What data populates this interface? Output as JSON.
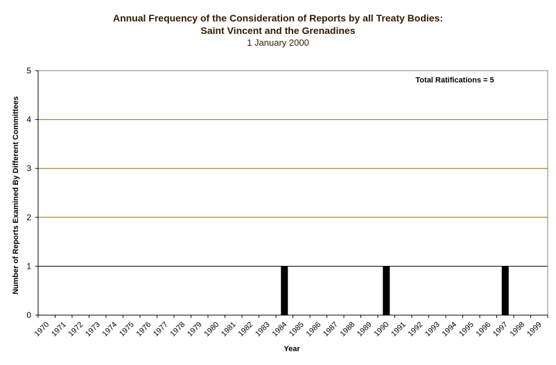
{
  "chart_data": {
    "type": "bar",
    "title": "Annual Frequency of the Consideration of Reports by all Treaty Bodies:",
    "subtitle": "Saint Vincent and the Grenadines",
    "date": "1 January 2000",
    "xlabel": "Year",
    "ylabel": "Number of Reports Examined By Different Committees",
    "ylim": [
      0,
      5
    ],
    "yticks": [
      "0",
      "1",
      "2",
      "3",
      "4",
      "5"
    ],
    "annotation": "Total Ratifications = 5",
    "categories": [
      "1970",
      "1971",
      "1972",
      "1973",
      "1974",
      "1975",
      "1976",
      "1977",
      "1978",
      "1979",
      "1980",
      "1981",
      "1982",
      "1983",
      "1984",
      "1985",
      "1986",
      "1987",
      "1988",
      "1989",
      "1990",
      "1991",
      "1992",
      "1993",
      "1994",
      "1995",
      "1996",
      "1997",
      "1998",
      "1999"
    ],
    "values": [
      0,
      0,
      0,
      0,
      0,
      0,
      0,
      0,
      0,
      0,
      0,
      0,
      0,
      0,
      1,
      0,
      0,
      0,
      0,
      0,
      1,
      0,
      0,
      0,
      0,
      0,
      0,
      1,
      0,
      0
    ],
    "colors": {
      "bar": "#000000",
      "grid": "#996600",
      "axis": "#000000"
    }
  }
}
